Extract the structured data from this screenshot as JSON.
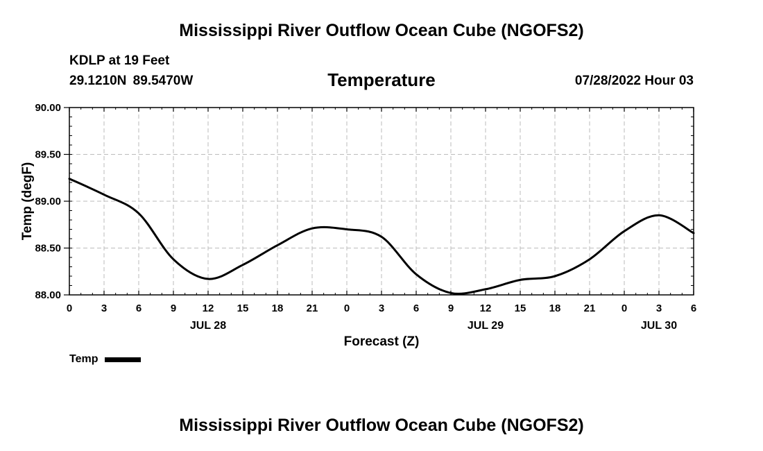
{
  "header": {
    "title_top": "Mississippi River Outflow Ocean Cube (NGOFS2)",
    "title_bottom": "Mississippi River Outflow Ocean Cube (NGOFS2)",
    "station": "KDLP at 19 Feet",
    "coords": "29.1210N  89.5470W",
    "parameter": "Temperature",
    "datetime": "07/28/2022 Hour 03"
  },
  "legend": {
    "label": "Temp"
  },
  "chart_data": {
    "type": "line",
    "title": "Temperature",
    "xlabel": "Forecast (Z)",
    "ylabel": "Temp (degF)",
    "ylim": [
      88.0,
      90.0
    ],
    "xlim": [
      0,
      54
    ],
    "yticks": [
      "88.00",
      "88.50",
      "89.00",
      "89.50",
      "90.00"
    ],
    "ytick_values": [
      88.0,
      88.5,
      89.0,
      89.5,
      90.0
    ],
    "xticks": [
      "0",
      "3",
      "6",
      "9",
      "12",
      "15",
      "18",
      "21",
      "0",
      "3",
      "6",
      "9",
      "12",
      "15",
      "18",
      "21",
      "0",
      "3",
      "6"
    ],
    "date_labels": [
      {
        "label": "JUL 28",
        "hour": 12
      },
      {
        "label": "JUL 29",
        "hour": 36
      },
      {
        "label": "JUL 30",
        "hour": 51
      }
    ],
    "grid": true,
    "series": [
      {
        "name": "Temp",
        "color": "#000000",
        "x": [
          0,
          3,
          6,
          9,
          12,
          15,
          18,
          21,
          24,
          27,
          30,
          33,
          36,
          39,
          42,
          45,
          48,
          51,
          54
        ],
        "values": [
          89.24,
          89.07,
          88.87,
          88.38,
          88.17,
          88.32,
          88.53,
          88.71,
          88.7,
          88.62,
          88.22,
          88.02,
          88.06,
          88.16,
          88.2,
          88.38,
          88.68,
          88.85,
          88.66
        ]
      }
    ]
  }
}
